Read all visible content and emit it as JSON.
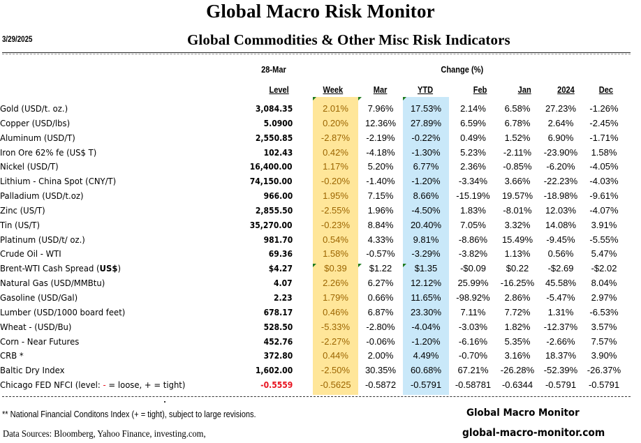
{
  "header": {
    "title": "Global Macro Risk Monitor",
    "date": "3/29/2025",
    "subtitle": "Global Commodities & Other Misc Risk Indicators"
  },
  "table": {
    "level_date": "28-Mar",
    "change_label": "Change (%)",
    "columns": [
      "Level",
      "Week",
      "Mar",
      "YTD",
      "Feb",
      "Jan",
      "2024",
      "Dec"
    ],
    "highlight_colors": {
      "week": "#FFE699",
      "ytd": "#C9E8F9",
      "week_text": "#9C6500",
      "negative_level": "#E8131F"
    },
    "rows": [
      {
        "name": "Gold (USD/t. oz.)",
        "level": "3,084.35",
        "week": "2.01%",
        "mar": "7.96%",
        "ytd": "17.53%",
        "feb": "2.14%",
        "jan": "6.58%",
        "y2024": "27.23%",
        "dec": "-1.26%"
      },
      {
        "name": "Copper (USD/lbs)",
        "level": "5.0900",
        "week": "0.20%",
        "mar": "12.36%",
        "ytd": "27.89%",
        "feb": "6.59%",
        "jan": "6.78%",
        "y2024": "2.64%",
        "dec": "-2.45%"
      },
      {
        "name": "Aluminum (USD/T)",
        "level": "2,550.85",
        "week": "-2.87%",
        "mar": "-2.19%",
        "ytd": "-0.22%",
        "feb": "0.49%",
        "jan": "1.52%",
        "y2024": "6.90%",
        "dec": "-1.71%"
      },
      {
        "name": "Iron Ore 62% fe (US$ T)",
        "level": "102.43",
        "week": "0.42%",
        "mar": "-4.18%",
        "ytd": "-1.30%",
        "feb": "5.23%",
        "jan": "-2.11%",
        "y2024": "-23.90%",
        "dec": "1.58%"
      },
      {
        "name": "Nickel (USD/T)",
        "level": "16,400.00",
        "week": "1.17%",
        "mar": "5.20%",
        "ytd": "6.77%",
        "feb": "2.36%",
        "jan": "-0.85%",
        "y2024": "-6.20%",
        "dec": "-4.05%"
      },
      {
        "name": "Lithium - China Spot (CNY/T)",
        "level": "74,150.00",
        "week": "-0.20%",
        "mar": "-1.40%",
        "ytd": "-1.20%",
        "feb": "-3.34%",
        "jan": "3.66%",
        "y2024": "-22.23%",
        "dec": "-4.03%"
      },
      {
        "name": "Palladium (USD/t.oz)",
        "level": "966.00",
        "week": "1.95%",
        "mar": "7.15%",
        "ytd": "8.66%",
        "feb": "-15.19%",
        "jan": "19.57%",
        "y2024": "-18.98%",
        "dec": "-9.61%"
      },
      {
        "name": "Zinc (US/T)",
        "level": "2,855.50",
        "week": "-2.55%",
        "mar": "1.96%",
        "ytd": "-4.50%",
        "feb": "1.83%",
        "jan": "-8.01%",
        "y2024": "12.03%",
        "dec": "-4.07%"
      },
      {
        "name": "Tin (US/T)",
        "level": "35,270.00",
        "week": "-0.23%",
        "mar": "8.84%",
        "ytd": "20.40%",
        "feb": "7.05%",
        "jan": "3.32%",
        "y2024": "14.08%",
        "dec": "3.91%"
      },
      {
        "name": "Platinum (USD/t/ oz.)",
        "level": "981.70",
        "week": "0.54%",
        "mar": "4.33%",
        "ytd": "9.81%",
        "feb": "-8.86%",
        "jan": "15.49%",
        "y2024": "-9.45%",
        "dec": "-5.55%"
      },
      {
        "name": "Crude Oil - WTI",
        "level": "69.36",
        "week": "1.58%",
        "mar": "-0.57%",
        "ytd": "-3.29%",
        "feb": "-3.82%",
        "jan": "1.13%",
        "y2024": "0.56%",
        "dec": "5.47%"
      },
      {
        "name": "Brent-WTI Cash Spread (",
        "name_bold": "US$",
        "name_suffix": ")",
        "level": "$4.27",
        "week": "$0.39",
        "mar": "$1.22",
        "ytd": "$1.35",
        "feb": "-$0.09",
        "jan": "$0.22",
        "y2024": "-$2.69",
        "dec": "-$2.02"
      },
      {
        "name": "Natural Gas  (USD/MMBtu)",
        "level": "4.07",
        "week": "2.26%",
        "mar": "6.27%",
        "ytd": "12.12%",
        "feb": "25.99%",
        "jan": "-16.25%",
        "y2024": "45.58%",
        "dec": "8.04%"
      },
      {
        "name": "Gasoline (USD/Gal)",
        "level": "2.23",
        "week": "1.79%",
        "mar": "0.66%",
        "ytd": "11.65%",
        "feb": "-98.92%",
        "jan": "2.86%",
        "y2024": "-5.47%",
        "dec": "2.97%"
      },
      {
        "name": "Lumber (USD/1000 board feet)",
        "level": "678.17",
        "week": "0.46%",
        "mar": "6.87%",
        "ytd": "23.30%",
        "feb": "7.11%",
        "jan": "7.72%",
        "y2024": "1.31%",
        "dec": "-6.53%"
      },
      {
        "name": "Wheat - (USD/Bu)",
        "level": "528.50",
        "week": "-5.33%",
        "mar": "-2.80%",
        "ytd": "-4.04%",
        "feb": "-3.03%",
        "jan": "1.82%",
        "y2024": "-12.37%",
        "dec": "3.57%"
      },
      {
        "name": "Corn - Near Futures",
        "level": "452.76",
        "week": "-2.27%",
        "mar": "-0.06%",
        "ytd": "-1.20%",
        "feb": "-6.16%",
        "jan": "5.35%",
        "y2024": "-2.66%",
        "dec": "7.57%"
      },
      {
        "name": "CRB *",
        "level": "372.80",
        "week": "0.44%",
        "mar": "2.00%",
        "ytd": "4.49%",
        "feb": "-0.70%",
        "jan": "3.16%",
        "y2024": "18.37%",
        "dec": "3.90%"
      },
      {
        "name": "Baltic Dry Index",
        "level": "1,602.00",
        "week": "-2.50%",
        "mar": "30.35%",
        "ytd": "60.68%",
        "feb": "67.21%",
        "jan": "-26.28%",
        "y2024": "-52.39%",
        "dec": "-26.37%"
      },
      {
        "name": "Chicago FED NFCI (level:  ",
        "name_red": "-",
        "name_suffix": " = loose,  + = tight)",
        "level": "-0.5559",
        "level_red": true,
        "week": "-0.5625",
        "mar": "-0.5872",
        "ytd": "-0.5791",
        "feb": "-0.58781",
        "jan": "-0.6344",
        "y2024": "-0.5791",
        "dec": "-0.5791"
      }
    ]
  },
  "footer": {
    "footnote": "** National Financial Conditons Index (+ =  tight), subject to large revisions.",
    "sources": "Data Sources:  Bloomberg,  Yahoo Finance, investing.com,",
    "brand": "Global Macro Monitor",
    "site": "global-macro-monitor.com"
  }
}
